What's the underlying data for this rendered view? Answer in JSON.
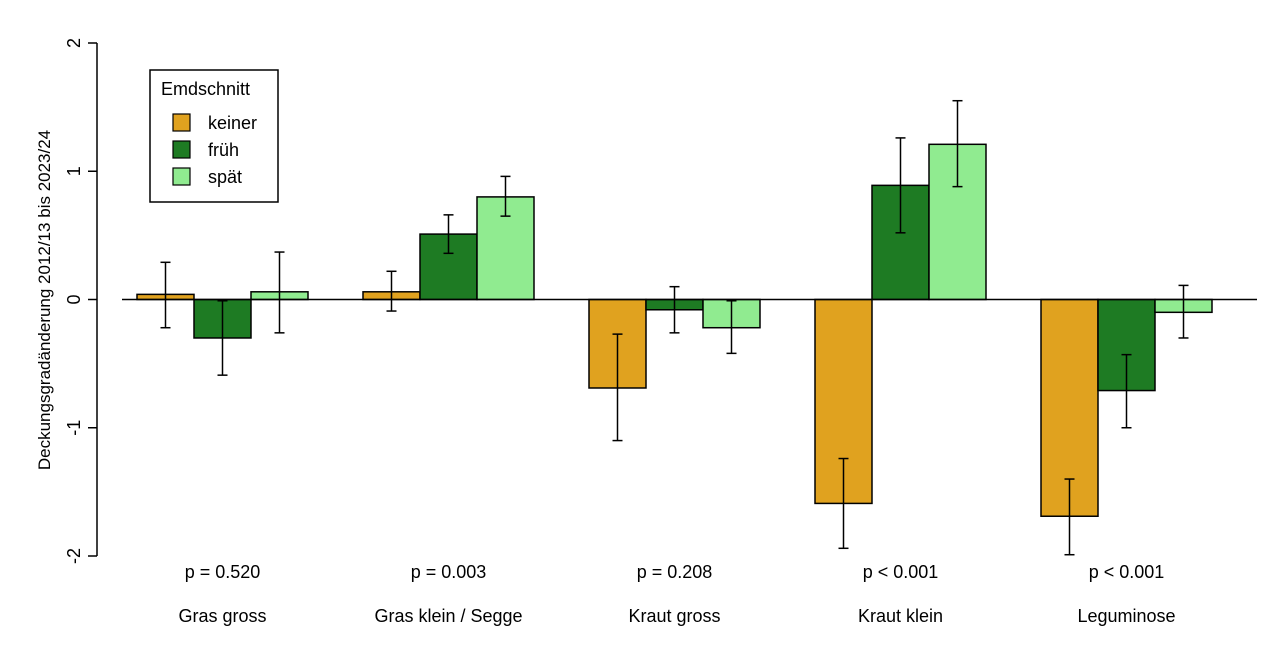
{
  "chart_data": {
    "type": "bar",
    "ylabel": "Deckungsgradänderung  2012/13 bis 2023/24",
    "xlabel": "",
    "ylim": [
      -2,
      2
    ],
    "yticks": [
      "-2",
      "-1",
      "0",
      "1",
      "2"
    ],
    "categories": [
      "Gras gross",
      "Gras klein / Segge",
      "Kraut gross",
      "Kraut klein",
      "Leguminose"
    ],
    "p_values": [
      "p = 0.520",
      "p = 0.003",
      "p = 0.208",
      "p < 0.001",
      "p < 0.001"
    ],
    "legend": {
      "title": "Emdschnitt",
      "position": "top-left"
    },
    "series": [
      {
        "name": "keiner",
        "color": "#E0A21F",
        "values": [
          0.04,
          0.06,
          -0.69,
          -1.59,
          -1.69
        ],
        "err_low": [
          -0.22,
          -0.09,
          -1.1,
          -1.94,
          -1.99
        ],
        "err_high": [
          0.29,
          0.22,
          -0.27,
          -1.24,
          -1.4
        ]
      },
      {
        "name": "früh",
        "color": "#1E7B23",
        "values": [
          -0.3,
          0.51,
          -0.08,
          0.89,
          -0.71
        ],
        "err_low": [
          -0.59,
          0.36,
          -0.26,
          0.52,
          -1.0
        ],
        "err_high": [
          -0.01,
          0.66,
          0.1,
          1.26,
          -0.43
        ]
      },
      {
        "name": "spät",
        "color": "#90EB90",
        "values": [
          0.06,
          0.8,
          -0.22,
          1.21,
          -0.1
        ],
        "err_low": [
          -0.26,
          0.65,
          -0.42,
          0.88,
          -0.3
        ],
        "err_high": [
          0.37,
          0.96,
          -0.01,
          1.55,
          0.11
        ]
      }
    ]
  }
}
